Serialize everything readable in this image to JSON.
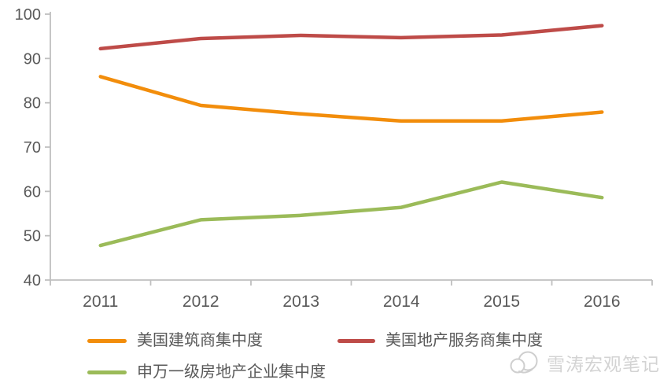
{
  "chart_data": {
    "type": "line",
    "title": "",
    "xlabel": "",
    "ylabel": "",
    "categories": [
      "2011",
      "2012",
      "2013",
      "2014",
      "2015",
      "2016"
    ],
    "series": [
      {
        "name": "美国建筑商集中度",
        "color": "#F28D0B",
        "values": [
          85.9,
          79.4,
          77.5,
          75.9,
          75.9,
          77.9
        ]
      },
      {
        "name": "美国地产服务商集中度",
        "color": "#BE4B48",
        "values": [
          92.2,
          94.5,
          95.2,
          94.7,
          95.3,
          97.4
        ]
      },
      {
        "name": "申万一级房地产企业集中度",
        "color": "#9BBB59",
        "values": [
          47.8,
          53.6,
          54.6,
          56.4,
          62.1,
          58.6
        ]
      }
    ],
    "ylim": [
      40,
      100
    ],
    "yticks": [
      40,
      50,
      60,
      70,
      80,
      90,
      100
    ],
    "grid": false,
    "legend_position": "bottom"
  },
  "legend": {
    "item1": "美国建筑商集中度",
    "item2": "美国地产服务商集中度",
    "item3": "申万一级房地产企业集中度"
  },
  "watermark": {
    "text": "雪涛宏观笔记"
  },
  "colors": {
    "axis": "#BFBFBF",
    "tick_label": "#595959",
    "watermark": "#D3D3D3"
  }
}
